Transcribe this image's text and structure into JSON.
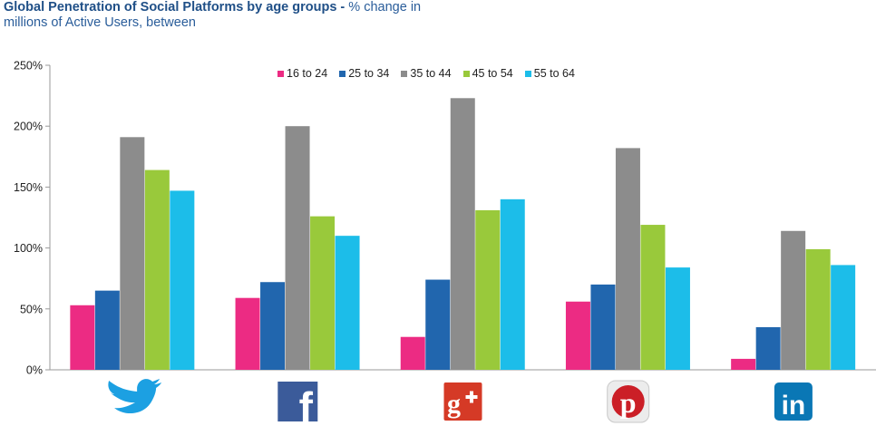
{
  "title": {
    "bold": "Global Penetration of Social Platforms by age groups -",
    "rest_line1": " % change in",
    "line2": "millions of Active Users, between"
  },
  "chart_data": {
    "type": "bar",
    "categories": [
      "twitter",
      "facebook",
      "google-plus",
      "pinterest",
      "linkedin"
    ],
    "series": [
      {
        "name": "16 to 24",
        "color": "#ec2b83",
        "values": [
          53,
          59,
          27,
          56,
          9
        ]
      },
      {
        "name": "25 to 34",
        "color": "#2166ae",
        "values": [
          65,
          72,
          74,
          70,
          35
        ]
      },
      {
        "name": "35 to 44",
        "color": "#8c8c8c",
        "values": [
          191,
          200,
          223,
          182,
          114
        ]
      },
      {
        "name": "45 to 54",
        "color": "#99c93b",
        "values": [
          164,
          126,
          131,
          119,
          99
        ]
      },
      {
        "name": "55 to 64",
        "color": "#1cbde9",
        "values": [
          147,
          110,
          140,
          84,
          86
        ]
      }
    ],
    "ylim": [
      0,
      250
    ],
    "yticks": [
      0,
      50,
      100,
      150,
      200,
      250
    ],
    "ytick_labels": [
      "0%",
      "50%",
      "100%",
      "150%",
      "200%",
      "250%"
    ],
    "legend_position": "top-center",
    "grid": false,
    "icons": [
      "twitter-icon",
      "facebook-icon",
      "google-plus-icon",
      "pinterest-icon",
      "linkedin-icon"
    ]
  }
}
